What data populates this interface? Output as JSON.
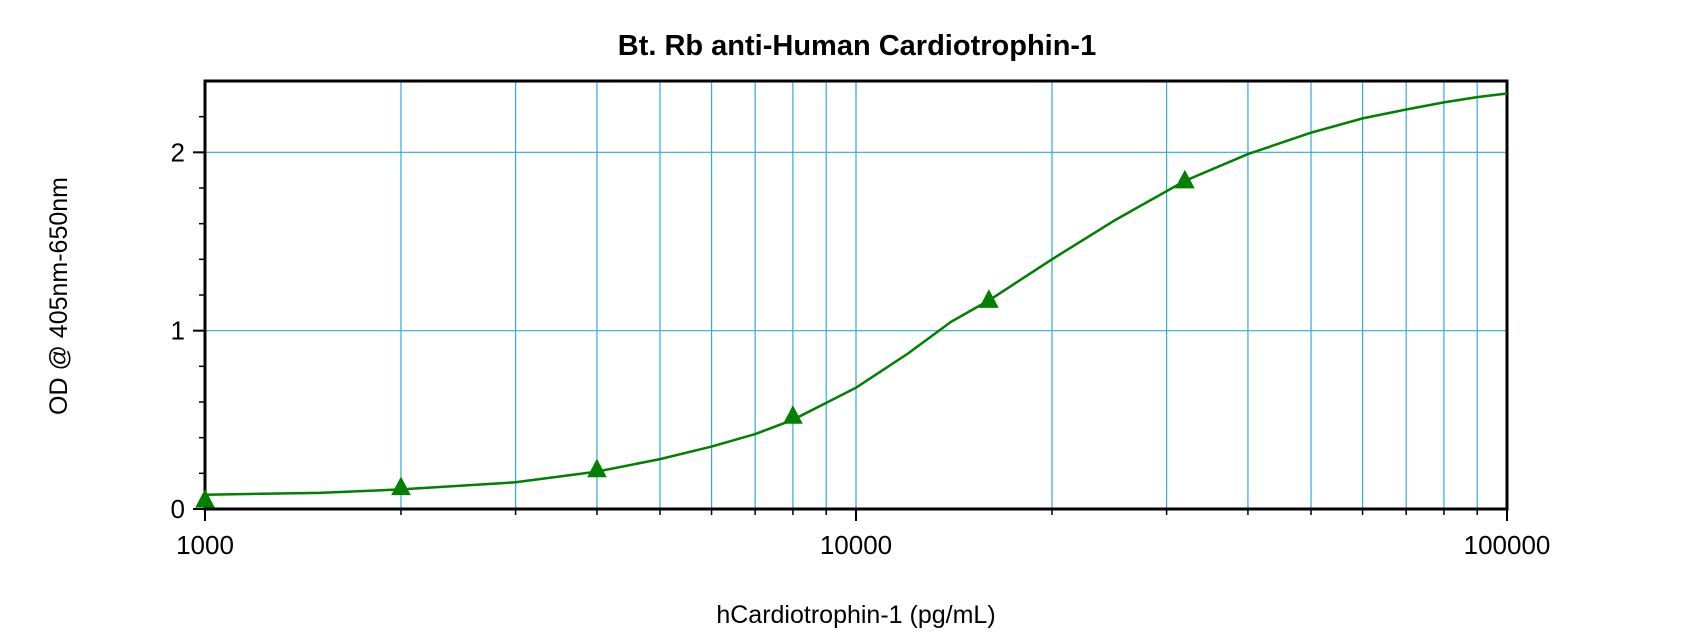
{
  "chart_data": {
    "type": "line",
    "title": "Bt. Rb anti-Human Cardiotrophin-1",
    "xlabel": "hCardiotrophin-1 (pg/mL)",
    "ylabel": "OD @ 405nm-650nm",
    "x_scale": "log",
    "xlim": [
      1000,
      100000
    ],
    "ylim": [
      0,
      2.4
    ],
    "x_ticks": [
      1000,
      10000,
      100000
    ],
    "x_tick_labels": [
      "1000",
      "10000",
      "100000"
    ],
    "y_ticks": [
      0,
      1,
      2
    ],
    "y_tick_labels": [
      "0",
      "1",
      "2"
    ],
    "grid": true,
    "series": [
      {
        "marker": "triangle",
        "color": "#008000",
        "points": [
          {
            "x": 1000,
            "y": 0.05
          },
          {
            "x": 2000,
            "y": 0.12
          },
          {
            "x": 4000,
            "y": 0.22
          },
          {
            "x": 8000,
            "y": 0.52
          },
          {
            "x": 16000,
            "y": 1.17
          },
          {
            "x": 32000,
            "y": 1.84
          }
        ]
      }
    ],
    "fit_curve": {
      "color": "#008000",
      "points": [
        {
          "x": 1000,
          "y": 0.08
        },
        {
          "x": 1500,
          "y": 0.09
        },
        {
          "x": 2000,
          "y": 0.11
        },
        {
          "x": 3000,
          "y": 0.15
        },
        {
          "x": 4000,
          "y": 0.21
        },
        {
          "x": 5000,
          "y": 0.28
        },
        {
          "x": 6000,
          "y": 0.35
        },
        {
          "x": 7000,
          "y": 0.42
        },
        {
          "x": 8000,
          "y": 0.5
        },
        {
          "x": 10000,
          "y": 0.68
        },
        {
          "x": 12000,
          "y": 0.87
        },
        {
          "x": 14000,
          "y": 1.05
        },
        {
          "x": 16000,
          "y": 1.17
        },
        {
          "x": 20000,
          "y": 1.4
        },
        {
          "x": 25000,
          "y": 1.62
        },
        {
          "x": 32000,
          "y": 1.84
        },
        {
          "x": 40000,
          "y": 1.99
        },
        {
          "x": 50000,
          "y": 2.11
        },
        {
          "x": 60000,
          "y": 2.19
        },
        {
          "x": 70000,
          "y": 2.24
        },
        {
          "x": 80000,
          "y": 2.28
        },
        {
          "x": 90000,
          "y": 2.31
        },
        {
          "x": 100000,
          "y": 2.33
        }
      ]
    }
  }
}
